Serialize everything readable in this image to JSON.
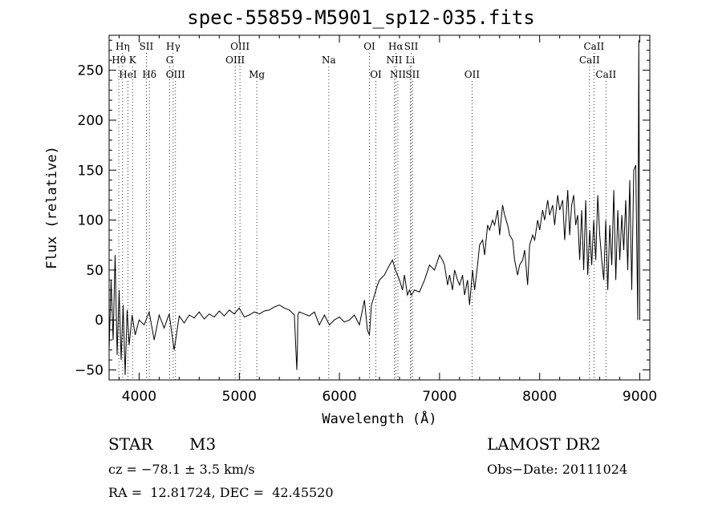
{
  "chart_data": {
    "type": "line",
    "title": "spec-55859-M5901_sp12-035.fits",
    "xlabel": "Wavelength (Å)",
    "ylabel": "Flux (relative)",
    "xlim": [
      3700,
      9100
    ],
    "ylim": [
      -60,
      285
    ],
    "xticks": [
      4000,
      5000,
      6000,
      7000,
      8000,
      9000
    ],
    "yticks": [
      -50,
      0,
      50,
      100,
      150,
      200,
      250
    ],
    "grid": false,
    "series": [
      {
        "x": [
          3700,
          3720,
          3740,
          3760,
          3780,
          3800,
          3820,
          3840,
          3860,
          3880,
          3900,
          3930,
          3960,
          4000,
          4050,
          4100,
          4150,
          4200,
          4250,
          4300,
          4350,
          4400,
          4450,
          4500,
          4550,
          4600,
          4650,
          4700,
          4750,
          4800,
          4850,
          4900,
          4950,
          5000,
          5050,
          5100,
          5150,
          5200,
          5250,
          5300,
          5350,
          5400,
          5450,
          5500,
          5550,
          5575,
          5580,
          5585,
          5600,
          5650,
          5700,
          5750,
          5800,
          5850,
          5900,
          5950,
          6000,
          6050,
          6100,
          6150,
          6200,
          6250,
          6280,
          6300,
          6320,
          6350,
          6380,
          6400,
          6450,
          6500,
          6530,
          6560,
          6580,
          6600,
          6630,
          6650,
          6680,
          6700,
          6720,
          6750,
          6800,
          6850,
          6900,
          6950,
          7000,
          7030,
          7050,
          7080,
          7100,
          7130,
          7150,
          7180,
          7200,
          7230,
          7250,
          7280,
          7300,
          7330,
          7350,
          7380,
          7400,
          7430,
          7450,
          7480,
          7500,
          7530,
          7550,
          7580,
          7600,
          7630,
          7650,
          7680,
          7700,
          7730,
          7750,
          7780,
          7800,
          7830,
          7850,
          7880,
          7900,
          7930,
          7950,
          7980,
          8000,
          8030,
          8050,
          8080,
          8100,
          8130,
          8150,
          8180,
          8200,
          8230,
          8250,
          8280,
          8300,
          8320,
          8340,
          8360,
          8380,
          8400,
          8420,
          8440,
          8460,
          8480,
          8500,
          8520,
          8540,
          8560,
          8580,
          8600,
          8620,
          8640,
          8660,
          8680,
          8700,
          8720,
          8740,
          8760,
          8780,
          8800,
          8820,
          8840,
          8860,
          8880,
          8900,
          8920,
          8940,
          8960,
          8980,
          8990,
          9000
        ],
        "y": [
          -30,
          40,
          -20,
          65,
          -35,
          30,
          -40,
          15,
          -55,
          10,
          -25,
          5,
          -15,
          0,
          -5,
          8,
          -20,
          5,
          -8,
          6,
          -30,
          4,
          -3,
          5,
          2,
          8,
          1,
          6,
          3,
          9,
          4,
          10,
          6,
          12,
          3,
          5,
          8,
          6,
          9,
          10,
          13,
          15,
          12,
          10,
          5,
          -50,
          -30,
          5,
          8,
          6,
          4,
          8,
          -5,
          5,
          -5,
          0,
          3,
          -2,
          0,
          5,
          -5,
          20,
          -10,
          -15,
          15,
          25,
          35,
          40,
          45,
          55,
          60,
          50,
          45,
          40,
          30,
          45,
          25,
          30,
          25,
          30,
          28,
          40,
          55,
          50,
          65,
          60,
          55,
          35,
          45,
          30,
          50,
          40,
          35,
          45,
          25,
          40,
          15,
          50,
          30,
          55,
          75,
          80,
          65,
          95,
          90,
          100,
          95,
          110,
          85,
          115,
          105,
          95,
          85,
          80,
          60,
          45,
          55,
          60,
          70,
          35,
          75,
          85,
          80,
          100,
          90,
          110,
          100,
          120,
          105,
          115,
          95,
          125,
          110,
          120,
          80,
          130,
          85,
          115,
          125,
          95,
          105,
          60,
          110,
          50,
          120,
          45,
          90,
          55,
          100,
          60,
          125,
          85,
          60,
          40,
          100,
          30,
          95,
          55,
          130,
          40,
          110,
          60,
          105,
          70,
          120,
          50,
          140,
          30,
          150,
          155,
          0,
          280,
          0
        ]
      }
    ],
    "spectral_lines": [
      {
        "name": "Hη",
        "wavelength": 3835,
        "row": 0
      },
      {
        "name": "Hθ",
        "wavelength": 3797,
        "row": 1
      },
      {
        "name": "HeI",
        "wavelength": 3888,
        "row": 2
      },
      {
        "name": "K",
        "wavelength": 3934,
        "row": 1
      },
      {
        "name": "SII",
        "wavelength": 4072,
        "row": 0
      },
      {
        "name": "Hδ",
        "wavelength": 4102,
        "row": 2
      },
      {
        "name": "Hγ",
        "wavelength": 4340,
        "row": 0
      },
      {
        "name": "G",
        "wavelength": 4305,
        "row": 1
      },
      {
        "name": "OIII",
        "wavelength": 4363,
        "row": 2
      },
      {
        "name": "OIII",
        "wavelength": 5007,
        "row": 0
      },
      {
        "name": "OIII",
        "wavelength": 4959,
        "row": 1
      },
      {
        "name": "Mg",
        "wavelength": 5175,
        "row": 2
      },
      {
        "name": "Na",
        "wavelength": 5894,
        "row": 1
      },
      {
        "name": "OI",
        "wavelength": 6300,
        "row": 0
      },
      {
        "name": "OI",
        "wavelength": 6364,
        "row": 2
      },
      {
        "name": "Hα",
        "wavelength": 6563,
        "row": 0
      },
      {
        "name": "NII",
        "wavelength": 6548,
        "row": 1
      },
      {
        "name": "NII",
        "wavelength": 6584,
        "row": 2
      },
      {
        "name": "SII",
        "wavelength": 6717,
        "row": 0
      },
      {
        "name": "Li",
        "wavelength": 6708,
        "row": 1
      },
      {
        "name": "SII",
        "wavelength": 6731,
        "row": 2
      },
      {
        "name": "OII",
        "wavelength": 7325,
        "row": 2
      },
      {
        "name": "CaII",
        "wavelength": 8542,
        "row": 0
      },
      {
        "name": "CaII",
        "wavelength": 8498,
        "row": 1
      },
      {
        "name": "CaII",
        "wavelength": 8662,
        "row": 2
      }
    ]
  },
  "info": {
    "class": "STAR",
    "subclass": "M3",
    "survey": "LAMOST DR2",
    "cz": "cz = −78.1 ± 3.5 km/s",
    "obs_date": "Obs−Date: 20111024",
    "coords": "RA =  12.81724, DEC =  42.45520"
  }
}
